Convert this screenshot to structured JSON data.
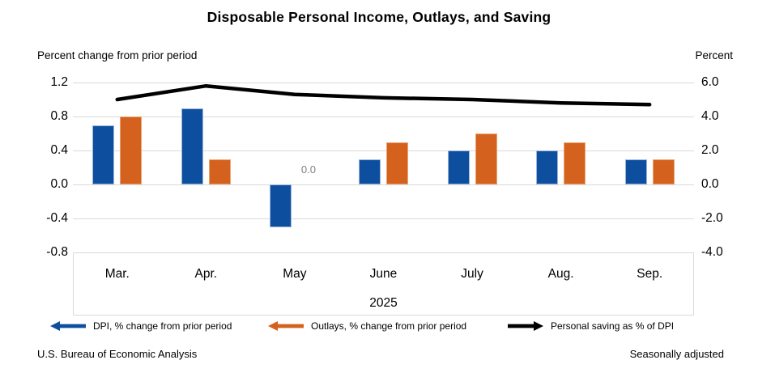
{
  "title": "Disposable Personal Income, Outlays, and Saving",
  "left_axis_label": "Percent change from prior period",
  "right_axis_label": "Percent",
  "footer": {
    "source": "U.S. Bureau of Economic Analysis",
    "note": "Seasonally adjusted"
  },
  "colors": {
    "dpi_bar": "#0d4f9e",
    "outlays_bar": "#d4611d",
    "saving_line": "#000000",
    "gridline": "#d9d9d9",
    "zero_label_gray": "#808080"
  },
  "chart_data": {
    "type": "bar",
    "subtype": "grouped bars with overlaid line (dual axis)",
    "categories": [
      "Mar.",
      "Apr.",
      "May",
      "June",
      "July",
      "Aug.",
      "Sep."
    ],
    "x_group_label": "2025",
    "series": [
      {
        "name": "DPI, % change from prior period",
        "type": "bar",
        "axis": "left",
        "color": "#0d4f9e",
        "values": [
          0.7,
          0.9,
          -0.5,
          0.3,
          0.4,
          0.4,
          0.3
        ]
      },
      {
        "name": "Outlays, % change from prior period",
        "type": "bar",
        "axis": "left",
        "color": "#d4611d",
        "values": [
          0.8,
          0.3,
          0.0,
          0.5,
          0.6,
          0.5,
          0.3
        ]
      },
      {
        "name": "Personal saving as % of DPI",
        "type": "line",
        "axis": "right",
        "color": "#000000",
        "values": [
          5.0,
          5.8,
          5.3,
          5.1,
          5.0,
          4.8,
          4.7
        ]
      }
    ],
    "left_axis": {
      "title": "Percent change from prior period",
      "ticks": [
        "1.2",
        "0.8",
        "0.4",
        "0.0",
        "-0.4",
        "-0.8"
      ],
      "tick_values": [
        1.2,
        0.8,
        0.4,
        0.0,
        -0.4,
        -0.8
      ],
      "range": [
        -0.8,
        1.2
      ]
    },
    "right_axis": {
      "title": "Percent",
      "ticks": [
        "6.0",
        "4.0",
        "2.0",
        "0.0",
        "-2.0",
        "-4.0"
      ],
      "tick_values": [
        6.0,
        4.0,
        2.0,
        0.0,
        -2.0,
        -4.0
      ],
      "range": [
        -4.0,
        6.0
      ]
    },
    "grid": "horizontal only",
    "legend_position": "bottom",
    "annotations": [
      {
        "text": "0.0",
        "series": "Outlays, % change from prior period",
        "category": "May"
      }
    ]
  }
}
